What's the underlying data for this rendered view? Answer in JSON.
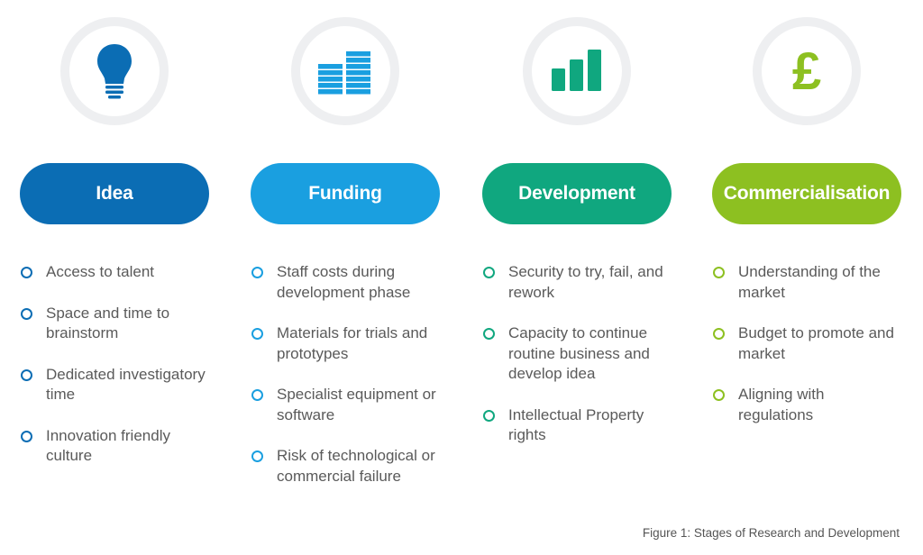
{
  "stages": [
    {
      "title": "Idea",
      "icon": "lightbulb-icon",
      "color": "#0b6db4",
      "items": [
        "Access to talent",
        "Space and time to brainstorm",
        "Dedicated investigatory time",
        "Innovation friendly culture"
      ]
    },
    {
      "title": "Funding",
      "icon": "stacked-coins-icon",
      "color": "#1a9fe0",
      "items": [
        "Staff costs during development phase",
        "Materials for trials and prototypes",
        "Specialist equipment or software",
        "Risk of technological or commercial failure"
      ]
    },
    {
      "title": "Development",
      "icon": "bar-chart-icon",
      "color": "#10a77f",
      "items": [
        "Security to try, fail, and rework",
        "Capacity to continue routine business and develop idea",
        "Intellectual Property rights"
      ]
    },
    {
      "title": "Commercialisation",
      "icon": "pound-icon",
      "color": "#8dc021",
      "items": [
        "Understanding of the market",
        "Budget to promote and market",
        "Aligning with regulations"
      ]
    }
  ],
  "pound_symbol": "£",
  "caption": "Figure 1: Stages of Research and Development"
}
